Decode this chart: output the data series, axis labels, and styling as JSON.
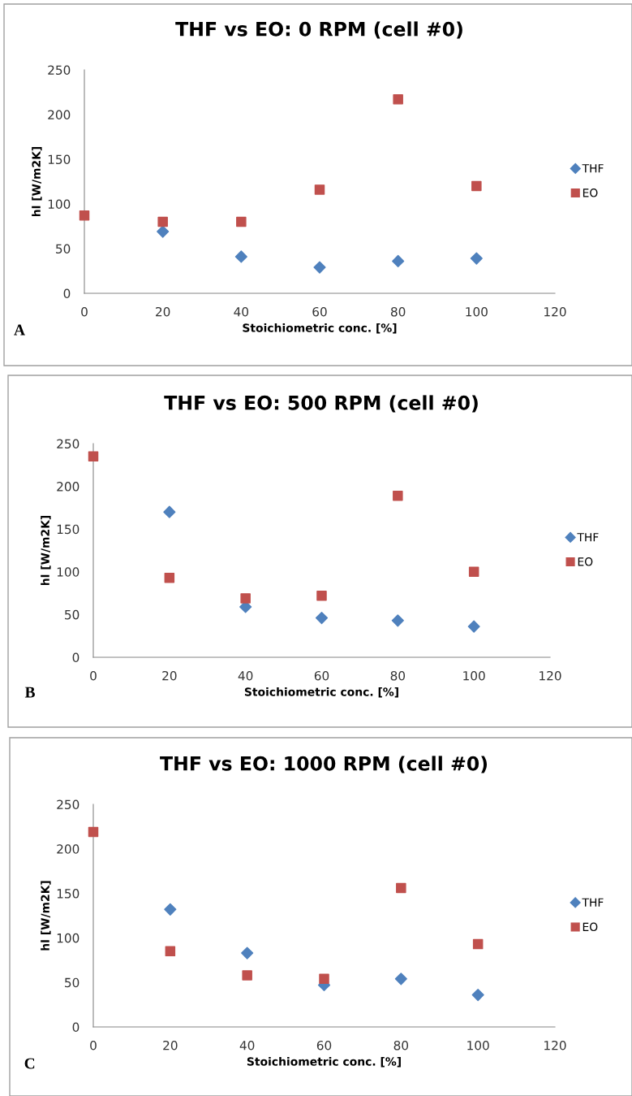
{
  "chart_data": [
    {
      "type": "scatter",
      "title": "THF vs EO: 0 RPM (cell #0)",
      "xlabel": "Stoichiometric conc. [%]",
      "ylabel": "hl [W/m2K]",
      "annotations": [
        "A"
      ],
      "xlim": [
        0,
        120
      ],
      "xticks": [
        0,
        20,
        40,
        60,
        80,
        100,
        120
      ],
      "ylim": [
        0,
        250
      ],
      "yticks": [
        0,
        50,
        100,
        150,
        200,
        250
      ],
      "grid": false,
      "legend": "right",
      "series": [
        {
          "name": "THF",
          "color": "#4f81bd",
          "marker": "diamond",
          "x": [
            20,
            40,
            60,
            80,
            100
          ],
          "values": [
            69,
            41,
            29,
            36,
            39
          ]
        },
        {
          "name": "EO",
          "color": "#c0504d",
          "marker": "square",
          "x": [
            0,
            20,
            40,
            60,
            80,
            100
          ],
          "values": [
            87,
            80,
            80,
            116,
            217,
            120
          ]
        }
      ]
    },
    {
      "type": "scatter",
      "title": "THF vs EO: 500 RPM (cell #0)",
      "xlabel": "Stoichiometric conc. [%]",
      "ylabel": "hl [W/m2K]",
      "annotations": [
        "B"
      ],
      "xlim": [
        0,
        120
      ],
      "xticks": [
        0,
        20,
        40,
        60,
        80,
        100,
        120
      ],
      "ylim": [
        0,
        250
      ],
      "yticks": [
        0,
        50,
        100,
        150,
        200,
        250
      ],
      "grid": false,
      "legend": "right",
      "series": [
        {
          "name": "THF",
          "color": "#4f81bd",
          "marker": "diamond",
          "x": [
            20,
            40,
            60,
            80,
            100
          ],
          "values": [
            170,
            59,
            46,
            43,
            36
          ]
        },
        {
          "name": "EO",
          "color": "#c0504d",
          "marker": "square",
          "x": [
            0,
            20,
            40,
            60,
            80,
            100
          ],
          "values": [
            235,
            93,
            69,
            72,
            189,
            100
          ]
        }
      ]
    },
    {
      "type": "scatter",
      "title": "THF vs EO: 1000 RPM (cell #0)",
      "xlabel": "Stoichiometric conc. [%]",
      "ylabel": "hl [W/m2K]",
      "annotations": [
        "C"
      ],
      "xlim": [
        0,
        120
      ],
      "xticks": [
        0,
        20,
        40,
        60,
        80,
        100,
        120
      ],
      "ylim": [
        0,
        250
      ],
      "yticks": [
        0,
        50,
        100,
        150,
        200,
        250
      ],
      "grid": false,
      "legend": "right",
      "series": [
        {
          "name": "THF",
          "color": "#4f81bd",
          "marker": "diamond",
          "x": [
            20,
            40,
            60,
            80,
            100
          ],
          "values": [
            132,
            83,
            47,
            54,
            36
          ]
        },
        {
          "name": "EO",
          "color": "#c0504d",
          "marker": "square",
          "x": [
            0,
            20,
            40,
            60,
            80,
            100
          ],
          "values": [
            219,
            85,
            58,
            54,
            156,
            93
          ]
        }
      ]
    }
  ]
}
